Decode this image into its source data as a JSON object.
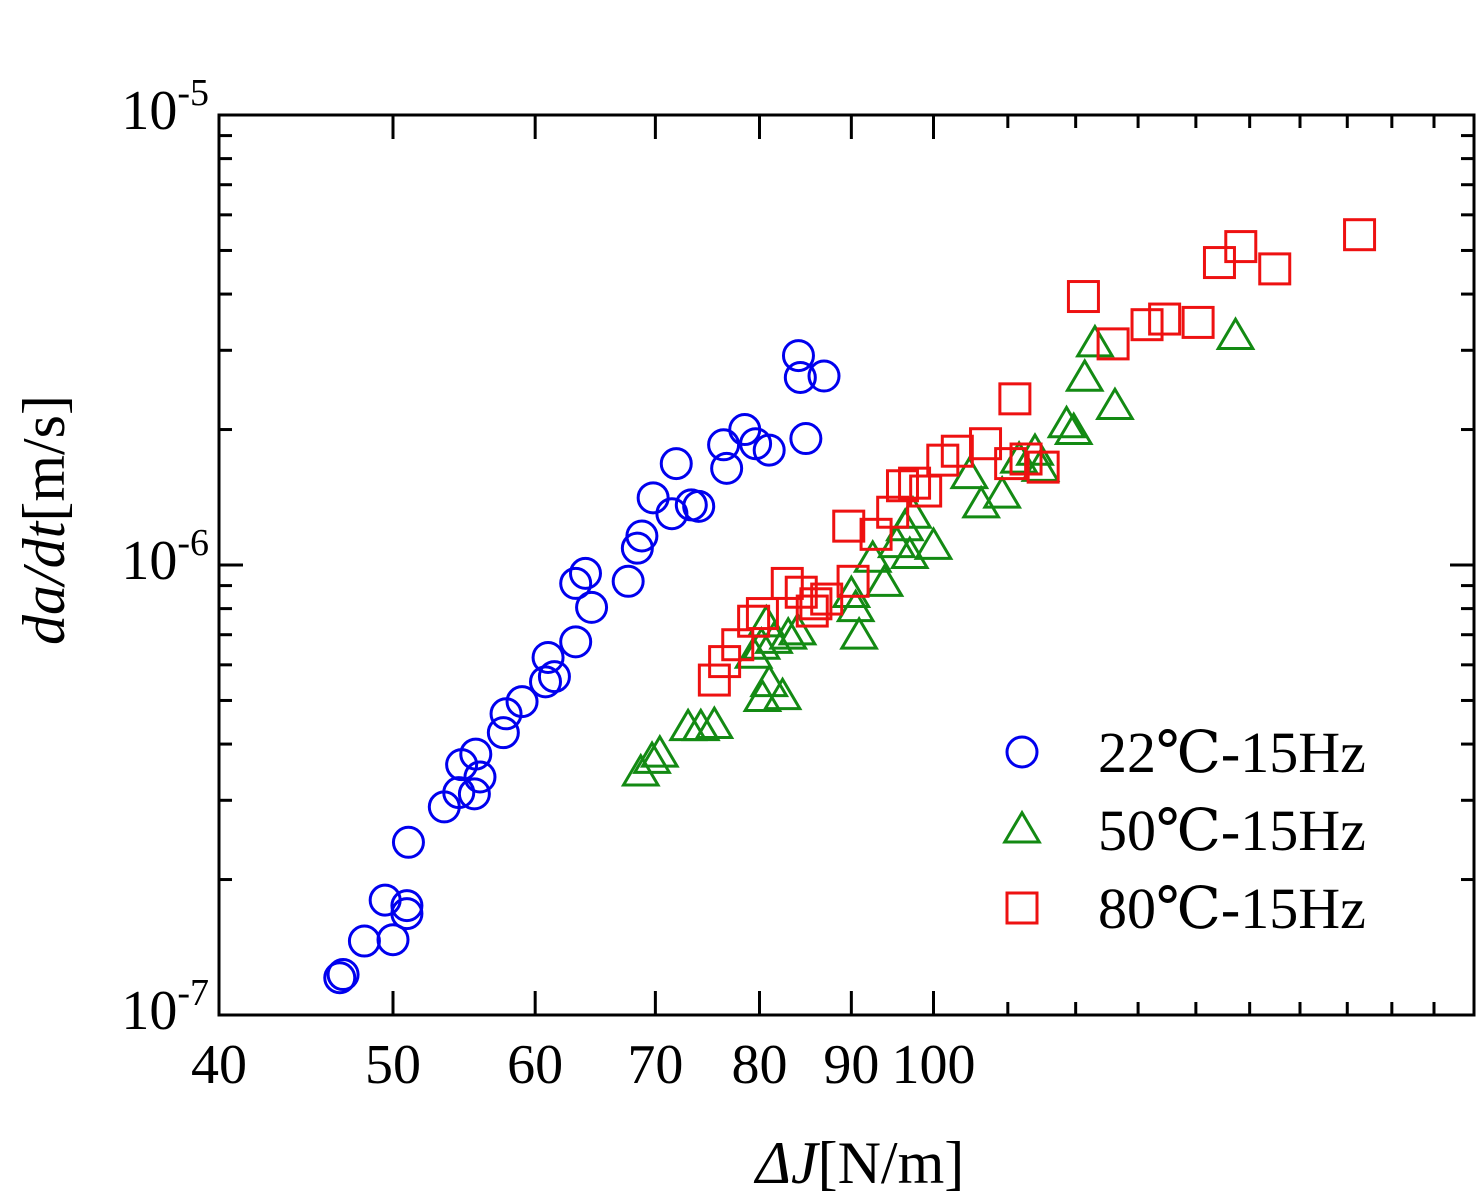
{
  "chart_data": {
    "type": "scatter",
    "title": "",
    "xlabel": {
      "italic": "ΔJ",
      "normal": "[N/m]"
    },
    "ylabel": {
      "italic": "da/dt",
      "normal": "[m/s]"
    },
    "x_scale": "log",
    "y_scale": "log",
    "xlim": [
      40,
      200
    ],
    "ylim": [
      1e-07,
      1e-05
    ],
    "x_tick_labels": [
      "40",
      "50",
      "60",
      "70",
      "80",
      "90",
      "100"
    ],
    "y_tick_labels": [
      {
        "base": "10",
        "exp": "-5"
      },
      {
        "base": "10",
        "exp": "-6"
      },
      {
        "base": "10",
        "exp": "-7"
      }
    ],
    "grid": false,
    "legend_position": "bottom-right",
    "series": [
      {
        "name": "22℃-15Hz",
        "marker": "circle",
        "color": "#0000ee",
        "points": [
          [
            46.7,
            1.21e-07
          ],
          [
            46.9,
            1.23e-07
          ],
          [
            48.2,
            1.46e-07
          ],
          [
            49.5,
            1.8e-07
          ],
          [
            50.0,
            1.47e-07
          ],
          [
            50.9,
            1.68e-07
          ],
          [
            50.9,
            1.75e-07
          ],
          [
            51.0,
            2.42e-07
          ],
          [
            53.4,
            2.9e-07
          ],
          [
            54.4,
            3.12e-07
          ],
          [
            54.6,
            3.6e-07
          ],
          [
            55.5,
            3.1e-07
          ],
          [
            55.6,
            3.8e-07
          ],
          [
            55.9,
            3.38e-07
          ],
          [
            57.6,
            4.24e-07
          ],
          [
            57.8,
            4.67e-07
          ],
          [
            59.0,
            4.97e-07
          ],
          [
            60.8,
            5.5e-07
          ],
          [
            61.0,
            6.23e-07
          ],
          [
            61.5,
            5.65e-07
          ],
          [
            63.2,
            6.75e-07
          ],
          [
            63.2,
            9.1e-07
          ],
          [
            64.0,
            9.58e-07
          ],
          [
            64.5,
            8.05e-07
          ],
          [
            67.6,
            9.2e-07
          ],
          [
            68.4,
            1.09e-06
          ],
          [
            68.8,
            1.16e-06
          ],
          [
            69.8,
            1.41e-06
          ],
          [
            71.5,
            1.3e-06
          ],
          [
            71.9,
            1.68e-06
          ],
          [
            73.3,
            1.36e-06
          ],
          [
            74.0,
            1.35e-06
          ],
          [
            76.4,
            1.85e-06
          ],
          [
            76.7,
            1.64e-06
          ],
          [
            78.5,
            2e-06
          ],
          [
            79.6,
            1.86e-06
          ],
          [
            81.0,
            1.8e-06
          ],
          [
            84.1,
            2.92e-06
          ],
          [
            84.3,
            2.61e-06
          ],
          [
            84.9,
            1.91e-06
          ],
          [
            86.9,
            2.63e-06
          ]
        ]
      },
      {
        "name": "50℃-15Hz",
        "marker": "triangle",
        "color": "#138a13",
        "points": [
          [
            68.7,
            3.45e-07
          ],
          [
            69.7,
            3.68e-07
          ],
          [
            70.4,
            3.8e-07
          ],
          [
            73.0,
            4.35e-07
          ],
          [
            74.2,
            4.35e-07
          ],
          [
            75.5,
            4.4e-07
          ],
          [
            79.4,
            6.3e-07
          ],
          [
            80.2,
            6.6e-07
          ],
          [
            80.7,
            7.4e-07
          ],
          [
            80.3,
            5.05e-07
          ],
          [
            81.0,
            5.45e-07
          ],
          [
            81.5,
            6.8e-07
          ],
          [
            82.4,
            5.1e-07
          ],
          [
            83.0,
            6.95e-07
          ],
          [
            84.0,
            7.1e-07
          ],
          [
            90.0,
            8.6e-07
          ],
          [
            90.5,
            8e-07
          ],
          [
            90.9,
            6.95e-07
          ],
          [
            92.5,
            1.03e-06
          ],
          [
            93.9,
            9.1e-07
          ],
          [
            95.4,
            1.11e-06
          ],
          [
            96.4,
            1.21e-06
          ],
          [
            97.4,
            1.29e-06
          ],
          [
            97.0,
            1.05e-06
          ],
          [
            100.0,
            1.1e-06
          ],
          [
            104.7,
            1.58e-06
          ],
          [
            106.3,
            1.36e-06
          ],
          [
            109.2,
            1.43e-06
          ],
          [
            111.6,
            1.71e-06
          ],
          [
            113.9,
            1.78e-06
          ],
          [
            114.7,
            1.64e-06
          ],
          [
            118.6,
            2.05e-06
          ],
          [
            119.7,
            1.98e-06
          ],
          [
            121.4,
            2.6e-06
          ],
          [
            123.0,
            3.1e-06
          ],
          [
            126.2,
            2.25e-06
          ],
          [
            147.3,
            3.22e-06
          ]
        ]
      },
      {
        "name": "80℃-15Hz",
        "marker": "square",
        "color": "#ee1111",
        "points": [
          [
            75.5,
            5.55e-07
          ],
          [
            76.5,
            6.1e-07
          ],
          [
            77.8,
            6.65e-07
          ],
          [
            79.4,
            7.5e-07
          ],
          [
            80.3,
            7.8e-07
          ],
          [
            82.9,
            9.1e-07
          ],
          [
            84.4,
            8.7e-07
          ],
          [
            85.6,
            7.9e-07
          ],
          [
            86.0,
            8.2e-07
          ],
          [
            87.2,
            8.4e-07
          ],
          [
            89.7,
            1.22e-06
          ],
          [
            90.2,
            9.2e-07
          ],
          [
            92.9,
            1.17e-06
          ],
          [
            94.9,
            1.31e-06
          ],
          [
            96.1,
            1.5e-06
          ],
          [
            97.6,
            1.52e-06
          ],
          [
            99.0,
            1.46e-06
          ],
          [
            101.2,
            1.71e-06
          ],
          [
            103.1,
            1.79e-06
          ],
          [
            106.9,
            1.86e-06
          ],
          [
            110.4,
            1.68e-06
          ],
          [
            111.0,
            2.34e-06
          ],
          [
            112.6,
            1.72e-06
          ],
          [
            115.1,
            1.65e-06
          ],
          [
            121.2,
            3.95e-06
          ],
          [
            125.9,
            3.1e-06
          ],
          [
            131.5,
            3.42e-06
          ],
          [
            134.5,
            3.52e-06
          ],
          [
            140.4,
            3.46e-06
          ],
          [
            144.3,
            4.7e-06
          ],
          [
            148.3,
            5.1e-06
          ],
          [
            154.9,
            4.55e-06
          ],
          [
            172.7,
            5.42e-06
          ]
        ]
      }
    ]
  }
}
